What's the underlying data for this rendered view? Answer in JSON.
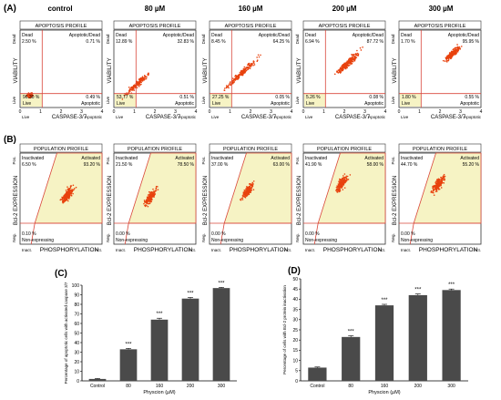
{
  "panel_labels": {
    "a": "(A)",
    "b": "(B)",
    "c": "(C)",
    "d": "(D)"
  },
  "conditions": [
    "control",
    "80 µM",
    "160 µM",
    "200 µM",
    "300 µM"
  ],
  "apoptosis": {
    "title": "APOPTOSIS PROFILE",
    "ylabel": "VIABILITY",
    "xlabel": "CASPASE-3/7",
    "x_left_label": "Live",
    "x_right_label": "Apoptotic",
    "y_top_label": "Dead",
    "y_bottom_label": "Live",
    "x_ticks": [
      "0",
      "1",
      "2",
      "3",
      "4"
    ],
    "quadrant_names": {
      "tl": "Dead",
      "tr": "Apoptotic/Dead",
      "bl": "Live",
      "br": "Apoptotic"
    },
    "panels": [
      {
        "tl": "2.50 %",
        "tr": "0.71 %",
        "bl": "96.30 %",
        "br": "0.49 %"
      },
      {
        "tl": "12.89 %",
        "tr": "32.83 %",
        "bl": "53.77 %",
        "br": "0.51 %"
      },
      {
        "tl": "8.45 %",
        "tr": "64.25 %",
        "bl": "27.25 %",
        "br": "0.05 %"
      },
      {
        "tl": "6.94 %",
        "tr": "87.72 %",
        "bl": "5.26 %",
        "br": "0.08 %"
      },
      {
        "tl": "1.70 %",
        "tr": "95.95 %",
        "bl": "1.80 %",
        "br": "0.55 %"
      }
    ]
  },
  "population": {
    "title": "POPULATION PROFILE",
    "ylabel": "Bcl-2 EXPRESSION",
    "xlabel": "PHOSPHORYLATION",
    "x_left_label": "Inact.",
    "x_right_label": "Act.",
    "y_top_label": "Pos.",
    "y_bottom_label": "Neg.",
    "quadrant_names": {
      "tl": "Inactivated",
      "tr": "Activated",
      "bl": "Non-expressing"
    },
    "panels": [
      {
        "tl": "6.50 %",
        "tr": "93.20 %",
        "bl": "0.10 %"
      },
      {
        "tl": "21.50 %",
        "tr": "78.50 %",
        "bl": "0.00 %"
      },
      {
        "tl": "37.00 %",
        "tr": "63.00 %",
        "bl": "0.00 %"
      },
      {
        "tl": "41.90 %",
        "tr": "58.00 %",
        "bl": "0.00 %"
      },
      {
        "tl": "44.70 %",
        "tr": "55.20 %",
        "bl": "0.00 %"
      }
    ]
  },
  "chart_data": [
    {
      "type": "bar",
      "panel": "(C)",
      "categories": [
        "Control",
        "80",
        "160",
        "200",
        "300"
      ],
      "values": [
        2,
        33,
        64,
        86,
        97
      ],
      "errors": [
        0.5,
        1.0,
        1.5,
        1.2,
        0.8
      ],
      "significance": [
        "",
        "***",
        "***",
        "***",
        "***"
      ],
      "xlabel": "Physcion (µM)",
      "ylabel": "Percentage of apoptotic cells with activated caspase 3/7",
      "ylim": [
        0,
        100
      ],
      "yticks": [
        0,
        10,
        20,
        30,
        40,
        50,
        60,
        70,
        80,
        90,
        100
      ],
      "bar_color": "#4a4a4a"
    },
    {
      "type": "bar",
      "panel": "(D)",
      "categories": [
        "Control",
        "80",
        "160",
        "200",
        "300"
      ],
      "values": [
        6.5,
        21.5,
        37,
        42,
        44.5
      ],
      "errors": [
        0.3,
        0.6,
        0.5,
        0.6,
        0.5
      ],
      "significance": [
        "",
        "***",
        "***",
        "***",
        "***"
      ],
      "xlabel": "Physcion (µM)",
      "ylabel": "Percentage of cells with Bcl-2 protein inactivation",
      "ylim": [
        0,
        50
      ],
      "yticks": [
        0,
        5,
        10,
        15,
        20,
        25,
        30,
        35,
        40,
        45,
        50
      ],
      "bar_color": "#4a4a4a"
    }
  ],
  "colors": {
    "dot": "#e8420e",
    "gate": "#d9473a",
    "gate_fill": "#f6f3c4",
    "frame": "#333333"
  }
}
